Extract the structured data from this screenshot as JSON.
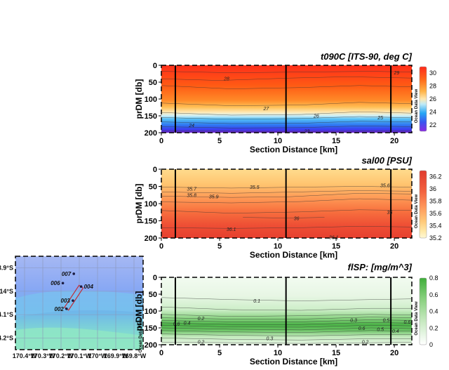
{
  "colors": {
    "temperature_scale": [
      "#6e23c8",
      "#3a54f0",
      "#24a6f5",
      "#bfeaf7",
      "#ffe8b0",
      "#ffb347",
      "#ff7a1f",
      "#ff4a12",
      "#ff2a1a"
    ],
    "salinity_scale": [
      "#fff8d6",
      "#ffe9a8",
      "#ffc979",
      "#ff9a5c",
      "#f2603e",
      "#e03a2e"
    ],
    "flsp_scale": [
      "#ffffff",
      "#e7f6e5",
      "#bfe6b8",
      "#86cf7c",
      "#3fae3a"
    ],
    "map_water": "#7fb2f5",
    "map_shelf": "#8fe6c4",
    "section_line": "#c0303a"
  },
  "chart_data": [
    {
      "type": "heatmap",
      "title": "t090C [ITS-90, deg C]",
      "xlabel": "Section Distance [km]",
      "ylabel": "prDM [db]",
      "xlim": [
        0,
        21.5
      ],
      "ylim": [
        200,
        0
      ],
      "x_ticks": [
        "0",
        "5",
        "10",
        "15",
        "20"
      ],
      "y_ticks": [
        "0",
        "50",
        "100",
        "150",
        "200"
      ],
      "station_lines_km": [
        1.2,
        10.7,
        19.7
      ],
      "colorbar": {
        "min": 21,
        "max": 31,
        "ticks": [
          "30",
          "28",
          "26",
          "24",
          "22"
        ],
        "label": "Ocean Data View"
      },
      "contour_labels": [
        {
          "text": "29",
          "x": 20.2,
          "y": 22
        },
        {
          "text": "28",
          "x": 5.6,
          "y": 40
        },
        {
          "text": "27",
          "x": 9.0,
          "y": 128
        },
        {
          "text": "26",
          "x": 13.3,
          "y": 150
        },
        {
          "text": "25",
          "x": 18.8,
          "y": 155
        },
        {
          "text": "24",
          "x": 2.6,
          "y": 178
        },
        {
          "text": "23",
          "x": 12.5,
          "y": 196
        }
      ]
    },
    {
      "type": "heatmap",
      "title": "sal00 [PSU]",
      "xlabel": "Section Distance [km]",
      "ylabel": "prDM [db]",
      "xlim": [
        0,
        21.5
      ],
      "ylim": [
        200,
        0
      ],
      "x_ticks": [
        "0",
        "5",
        "10",
        "15",
        "20"
      ],
      "y_ticks": [
        "0",
        "50",
        "100",
        "150",
        "200"
      ],
      "station_lines_km": [
        1.2,
        10.7,
        19.7
      ],
      "colorbar": {
        "min": 35.2,
        "max": 36.3,
        "ticks": [
          "36.2",
          "36",
          "35.8",
          "35.6",
          "35.4",
          "35.2"
        ],
        "label": "Ocean Data View"
      },
      "contour_labels": [
        {
          "text": "35.7",
          "x": 2.6,
          "y": 57
        },
        {
          "text": "35.5",
          "x": 8.0,
          "y": 52
        },
        {
          "text": "35.6",
          "x": 19.2,
          "y": 47
        },
        {
          "text": "35.8",
          "x": 2.6,
          "y": 76
        },
        {
          "text": "35.9",
          "x": 4.5,
          "y": 80
        },
        {
          "text": "36",
          "x": 19.6,
          "y": 125
        },
        {
          "text": "36",
          "x": 11.6,
          "y": 143
        },
        {
          "text": "36.1",
          "x": 6.0,
          "y": 174
        },
        {
          "text": "36.1",
          "x": 14.8,
          "y": 198
        }
      ]
    },
    {
      "type": "heatmap",
      "title": "flSP: [mg/m^3]",
      "xlabel": "Section Distance [km]",
      "ylabel": "prDM [db]",
      "xlim": [
        0,
        21.5
      ],
      "ylim": [
        200,
        0
      ],
      "x_ticks": [
        "0",
        "5",
        "10",
        "15",
        "20"
      ],
      "y_ticks": [
        "0",
        "50",
        "100",
        "150",
        "200"
      ],
      "station_lines_km": [
        1.2,
        10.7,
        19.7
      ],
      "colorbar": {
        "min": 0,
        "max": 0.8,
        "ticks": [
          "0.8",
          "0.6",
          "0.4",
          "0.2",
          "0"
        ],
        "label": "Ocean Data View"
      },
      "contour_labels": [
        {
          "text": "0.1",
          "x": 8.2,
          "y": 70
        },
        {
          "text": "0.2",
          "x": 3.4,
          "y": 122
        },
        {
          "text": "0.4",
          "x": 2.2,
          "y": 135
        },
        {
          "text": "0.6",
          "x": 1.3,
          "y": 138
        },
        {
          "text": "0.3",
          "x": 16.5,
          "y": 127
        },
        {
          "text": "0.5",
          "x": 19.3,
          "y": 127
        },
        {
          "text": "0.6",
          "x": 21.1,
          "y": 132
        },
        {
          "text": "0.6",
          "x": 17.2,
          "y": 151
        },
        {
          "text": "0.5",
          "x": 18.8,
          "y": 154
        },
        {
          "text": "0.4",
          "x": 20.1,
          "y": 159
        },
        {
          "text": "0.3",
          "x": 9.3,
          "y": 181
        },
        {
          "text": "0.2",
          "x": 3.4,
          "y": 192
        },
        {
          "text": "0.2",
          "x": 17.5,
          "y": 192
        }
      ]
    }
  ],
  "map": {
    "lat_labels": [
      "13.9°S",
      "14°S",
      "14.1°S",
      "14.2°S"
    ],
    "lon_labels": [
      "170.4°W",
      "170.3°W",
      "170.2°W",
      "170.1°W",
      "170°W",
      "169.9°W",
      "169.8°W"
    ],
    "stations": [
      {
        "label": "007",
        "lon": -170.13,
        "lat": -13.925
      },
      {
        "label": "006",
        "lon": -170.19,
        "lat": -13.965
      },
      {
        "label": "004",
        "lon": -170.09,
        "lat": -13.98
      },
      {
        "label": "003",
        "lon": -170.135,
        "lat": -14.04
      },
      {
        "label": "002",
        "lon": -170.17,
        "lat": -14.075
      }
    ],
    "section": {
      "from_lon": -170.17,
      "from_lat": -14.075,
      "to_lon": -170.09,
      "to_lat": -13.98
    },
    "watermark": "Ocean Data View"
  }
}
